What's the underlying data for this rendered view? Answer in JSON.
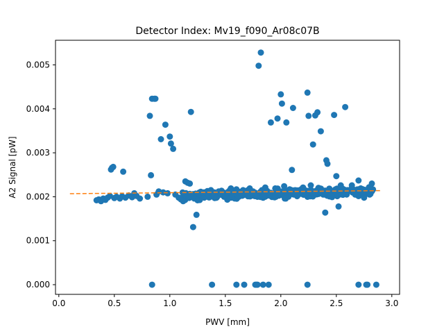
{
  "chart_data": {
    "type": "scatter",
    "title": "Detector Index: Mv19_f090_Ar08c07B",
    "xlabel": "PWV [mm]",
    "ylabel": "A2 Signal [pW]",
    "xlim": [
      -0.03,
      3.07
    ],
    "ylim": [
      -0.00022,
      0.00556
    ],
    "xticks": [
      0.0,
      0.5,
      1.0,
      1.5,
      2.0,
      2.5,
      3.0
    ],
    "xtick_labels": [
      "0.0",
      "0.5",
      "1.0",
      "1.5",
      "2.0",
      "2.5",
      "3.0"
    ],
    "yticks": [
      0.0,
      0.001,
      0.002,
      0.003,
      0.004,
      0.005
    ],
    "ytick_labels": [
      "0.000",
      "0.001",
      "0.002",
      "0.003",
      "0.004",
      "0.005"
    ],
    "grid": false,
    "series": [
      {
        "name": "measurements",
        "kind": "scatter",
        "color": "#1f77b4",
        "points": [
          [
            0.34,
            0.00192
          ],
          [
            0.36,
            0.00194
          ],
          [
            0.38,
            0.0019
          ],
          [
            0.4,
            0.00196
          ],
          [
            0.42,
            0.00193
          ],
          [
            0.44,
            0.00198
          ],
          [
            0.46,
            0.00202
          ],
          [
            0.47,
            0.00262
          ],
          [
            0.48,
            0.00266
          ],
          [
            0.49,
            0.00268
          ],
          [
            0.5,
            0.00197
          ],
          [
            0.52,
            0.002
          ],
          [
            0.55,
            0.00196
          ],
          [
            0.57,
            0.00201
          ],
          [
            0.58,
            0.00257
          ],
          [
            0.6,
            0.00198
          ],
          [
            0.63,
            0.00203
          ],
          [
            0.66,
            0.00199
          ],
          [
            0.68,
            0.00208
          ],
          [
            0.7,
            0.00202
          ],
          [
            0.73,
            0.00196
          ],
          [
            0.8,
            0.002
          ],
          [
            0.82,
            0.00384
          ],
          [
            0.83,
            0.00249
          ],
          [
            0.84,
            0.00423
          ],
          [
            0.86,
            0.00423
          ],
          [
            0.87,
            0.00423
          ],
          [
            0.88,
            0.00205
          ],
          [
            0.9,
            0.00212
          ],
          [
            0.92,
            0.00331
          ],
          [
            0.94,
            0.0021
          ],
          [
            0.96,
            0.00364
          ],
          [
            0.98,
            0.00208
          ],
          [
            1.0,
            0.00337
          ],
          [
            1.01,
            0.00321
          ],
          [
            1.03,
            0.00309
          ],
          [
            1.05,
            0.00205
          ],
          [
            1.08,
            0.00198
          ],
          [
            1.1,
            0.00194
          ],
          [
            1.12,
            0.0019
          ],
          [
            1.14,
            0.00235
          ],
          [
            1.16,
            0.00232
          ],
          [
            1.18,
            0.0023
          ],
          [
            1.19,
            0.00393
          ],
          [
            1.2,
            0.002
          ],
          [
            1.21,
            0.00131
          ],
          [
            1.22,
            0.00196
          ],
          [
            1.24,
            0.00159
          ],
          [
            1.25,
            0.00192
          ],
          [
            1.27,
            0.00205
          ],
          [
            1.29,
            0.0021
          ],
          [
            1.31,
            0.00198
          ],
          [
            1.33,
            0.00208
          ],
          [
            1.35,
            0.00203
          ],
          [
            1.37,
            0.00215
          ],
          [
            1.4,
            0.00208
          ],
          [
            1.42,
            0.00198
          ],
          [
            1.44,
            0.00212
          ],
          [
            1.46,
            0.00205
          ],
          [
            1.5,
            0.00203
          ],
          [
            1.53,
            0.00212
          ],
          [
            1.55,
            0.00219
          ],
          [
            1.58,
            0.00208
          ],
          [
            1.6,
            0.00217
          ],
          [
            1.63,
            0.00202
          ],
          [
            1.66,
            0.00215
          ],
          [
            1.7,
            0.00208
          ],
          [
            1.72,
            0.00219
          ],
          [
            1.75,
            0.00212
          ],
          [
            1.78,
            0.00203
          ],
          [
            1.8,
            0.00498
          ],
          [
            1.82,
            0.00528
          ],
          [
            1.83,
            0.00215
          ],
          [
            1.86,
            0.00221
          ],
          [
            1.9,
            0.00208
          ],
          [
            1.91,
            0.00369
          ],
          [
            1.95,
            0.00219
          ],
          [
            1.97,
            0.00378
          ],
          [
            2.0,
            0.00433
          ],
          [
            2.01,
            0.00412
          ],
          [
            2.03,
            0.00224
          ],
          [
            2.05,
            0.00369
          ],
          [
            2.08,
            0.00217
          ],
          [
            2.1,
            0.00261
          ],
          [
            2.11,
            0.00402
          ],
          [
            2.15,
            0.00212
          ],
          [
            2.2,
            0.00221
          ],
          [
            2.24,
            0.00437
          ],
          [
            2.25,
            0.00384
          ],
          [
            2.27,
            0.00226
          ],
          [
            2.29,
            0.00319
          ],
          [
            2.31,
            0.00385
          ],
          [
            2.33,
            0.00392
          ],
          [
            2.35,
            0.00212
          ],
          [
            2.36,
            0.00349
          ],
          [
            2.4,
            0.00164
          ],
          [
            2.41,
            0.00283
          ],
          [
            2.42,
            0.00275
          ],
          [
            2.45,
            0.00203
          ],
          [
            2.48,
            0.00386
          ],
          [
            2.5,
            0.00247
          ],
          [
            2.52,
            0.00178
          ],
          [
            2.54,
            0.00226
          ],
          [
            2.58,
            0.00404
          ],
          [
            2.6,
            0.00215
          ],
          [
            2.64,
            0.00226
          ],
          [
            2.67,
            0.00205
          ],
          [
            2.7,
            0.00237
          ],
          [
            2.72,
            0.00219
          ],
          [
            2.75,
            0.00198
          ],
          [
            2.8,
            0.00205
          ],
          [
            2.82,
            0.0023
          ],
          [
            0.84,
            0.0
          ],
          [
            1.38,
            0.0
          ],
          [
            1.6,
            0.0
          ],
          [
            1.67,
            0.0
          ],
          [
            1.77,
            0.0
          ],
          [
            1.78,
            0.0
          ],
          [
            1.79,
            0.0
          ],
          [
            1.84,
            0.0
          ],
          [
            1.89,
            0.0
          ],
          [
            2.24,
            0.0
          ],
          [
            2.7,
            0.0
          ],
          [
            2.77,
            0.0
          ],
          [
            2.78,
            0.0
          ],
          [
            2.86,
            0.0
          ]
        ]
      },
      {
        "name": "linear fit",
        "kind": "line",
        "style": "dashed",
        "color": "#ff7f0e",
        "x": [
          0.1,
          2.9
        ],
        "y": [
          0.00207,
          0.00214
        ]
      }
    ],
    "dense_band": {
      "x_range": [
        1.1,
        2.85
      ],
      "y_center_start": 0.00202,
      "y_center_end": 0.00213,
      "y_spread": 0.00014,
      "count": 360,
      "color": "#1f77b4"
    }
  }
}
